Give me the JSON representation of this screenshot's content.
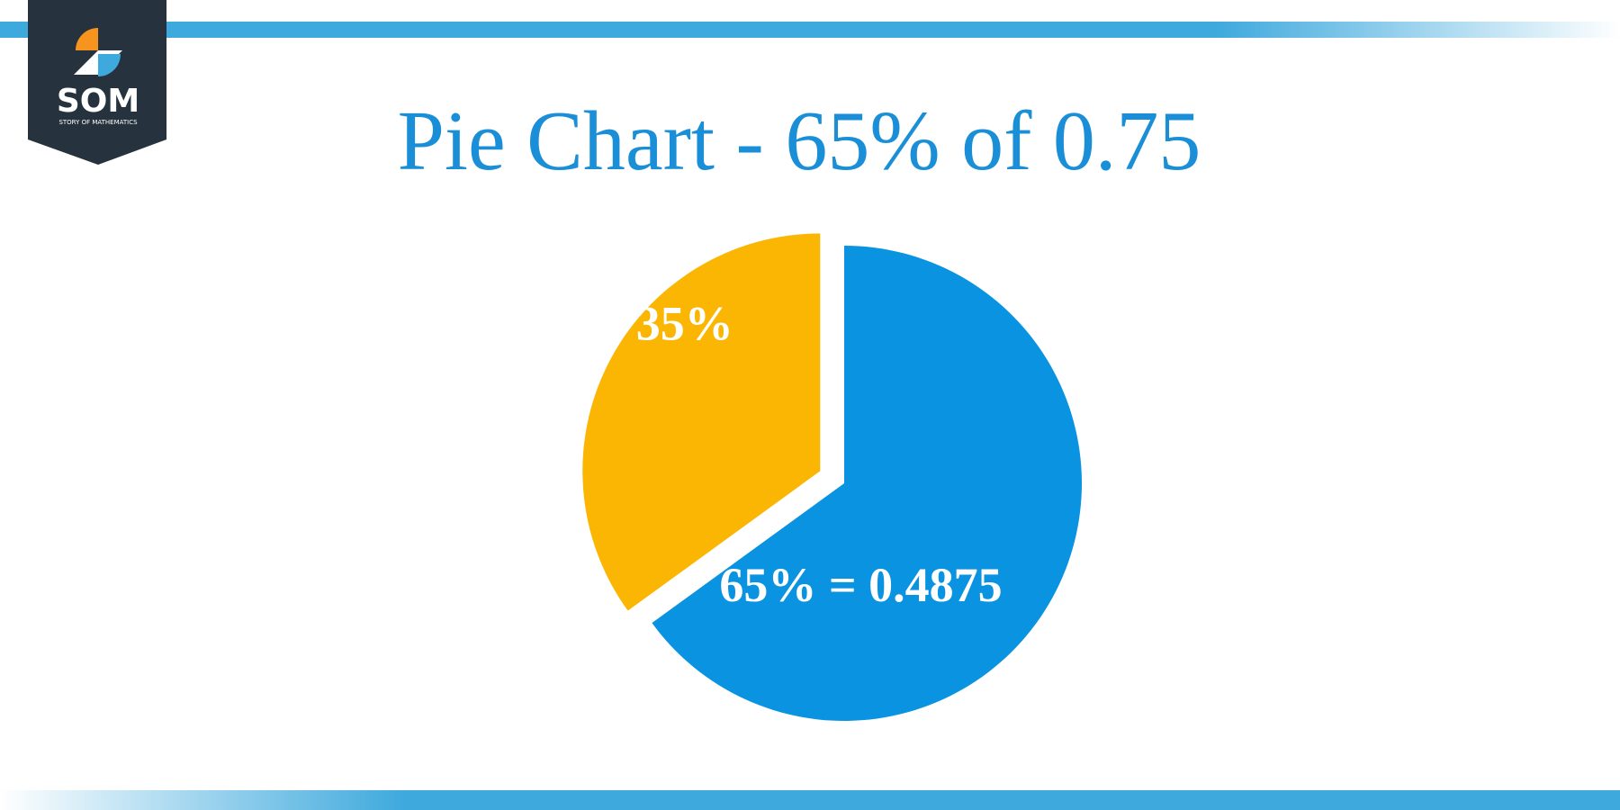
{
  "logo": {
    "text": "SOM",
    "tagline": "STORY OF MATHEMATICS"
  },
  "chart_data": {
    "type": "pie",
    "title": "Pie Chart - 65% of 0.75",
    "categories": [
      null,
      null
    ],
    "values": [
      65,
      35
    ],
    "value_labels": [
      "65% = 0.4875",
      "35%"
    ],
    "colors": [
      "#0a93e1",
      "#fbb603"
    ]
  }
}
